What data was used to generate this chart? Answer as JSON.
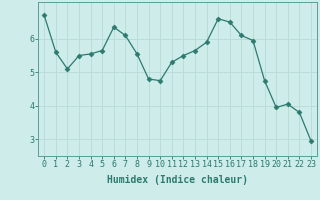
{
  "x": [
    0,
    1,
    2,
    3,
    4,
    5,
    6,
    7,
    8,
    9,
    10,
    11,
    12,
    13,
    14,
    15,
    16,
    17,
    18,
    19,
    20,
    21,
    22,
    23
  ],
  "y": [
    6.7,
    5.6,
    5.1,
    5.5,
    5.55,
    5.65,
    6.35,
    6.1,
    5.55,
    4.8,
    4.75,
    5.3,
    5.5,
    5.65,
    5.9,
    6.6,
    6.5,
    6.1,
    5.95,
    4.75,
    3.95,
    4.05,
    3.8,
    2.95
  ],
  "line_color": "#2d7a6e",
  "marker": "D",
  "marker_size": 2.5,
  "bg_color": "#cdecea",
  "grid_color": "#b8dbd8",
  "xlabel": "Humidex (Indice chaleur)",
  "ylim": [
    2.5,
    7.1
  ],
  "xlim": [
    -0.5,
    23.5
  ],
  "yticks": [
    3,
    4,
    5,
    6
  ],
  "xticks": [
    0,
    1,
    2,
    3,
    4,
    5,
    6,
    7,
    8,
    9,
    10,
    11,
    12,
    13,
    14,
    15,
    16,
    17,
    18,
    19,
    20,
    21,
    22,
    23
  ],
  "tick_color": "#2d7a6e",
  "label_color": "#2d7a6e",
  "font_size_xlabel": 7,
  "font_size_ticks": 6,
  "spine_color": "#5a9e94"
}
